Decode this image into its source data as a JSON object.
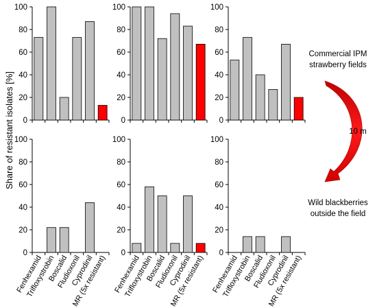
{
  "figure": {
    "ylabel": "Share of resistant isolates [%]",
    "annotation_top": [
      "Commercial IPM",
      "strawberry fields"
    ],
    "annotation_bottom": [
      "Wild blackberries",
      "outside the field"
    ],
    "distance_label": "10 m",
    "colors": {
      "bar": "#c0c0c0",
      "highlight": "#ff0000",
      "stroke": "#000000"
    }
  },
  "chart_data": [
    {
      "type": "bar",
      "panel": "top-left",
      "categories": [
        "Fenhexamid",
        "Trifloxystrobin",
        "Boscalid",
        "Fludioxonil",
        "Cyprodinil",
        "MR (5x resistant)"
      ],
      "values": [
        73,
        100,
        20,
        73,
        87,
        13
      ],
      "highlight": [
        5
      ],
      "ylim": [
        0,
        100
      ],
      "yticks": [
        0,
        20,
        40,
        60,
        80,
        100
      ],
      "show_categories": false
    },
    {
      "type": "bar",
      "panel": "top-center",
      "categories": [
        "Fenhexamid",
        "Trifloxystrobin",
        "Boscalid",
        "Fludioxonil",
        "Cyprodinil",
        "MR (5x resistant)"
      ],
      "values": [
        100,
        100,
        72,
        94,
        83,
        67
      ],
      "highlight": [
        5
      ],
      "ylim": [
        0,
        100
      ],
      "yticks": [
        0,
        20,
        40,
        60,
        80,
        100
      ],
      "show_categories": false
    },
    {
      "type": "bar",
      "panel": "top-right",
      "categories": [
        "Fenhexamid",
        "Trifloxystrobin",
        "Boscalid",
        "Fludioxonil",
        "Cyprodinil",
        "MR (5x resistant)"
      ],
      "values": [
        53,
        73,
        40,
        27,
        67,
        20
      ],
      "highlight": [
        5
      ],
      "ylim": [
        0,
        100
      ],
      "yticks": [
        0,
        20,
        40,
        60,
        80,
        100
      ],
      "show_categories": false
    },
    {
      "type": "bar",
      "panel": "bottom-left",
      "categories": [
        "Fenhexamid",
        "Trifloxystrobin",
        "Boscalid",
        "Fludioxonil",
        "Cyprodinil",
        "MR (5x resistant)"
      ],
      "values": [
        0,
        22,
        22,
        0,
        44,
        0
      ],
      "highlight": [
        5
      ],
      "ylim": [
        0,
        100
      ],
      "yticks": [
        0,
        20,
        40,
        60,
        80,
        100
      ],
      "show_categories": true
    },
    {
      "type": "bar",
      "panel": "bottom-center",
      "categories": [
        "Fenhexamid",
        "Trifloxystrobin",
        "Boscalid",
        "Fludioxonil",
        "Cyprodinil",
        "MR (5x resistant)"
      ],
      "values": [
        8,
        58,
        50,
        8,
        50,
        8
      ],
      "highlight": [
        5
      ],
      "ylim": [
        0,
        100
      ],
      "yticks": [
        0,
        20,
        40,
        60,
        80,
        100
      ],
      "show_categories": true
    },
    {
      "type": "bar",
      "panel": "bottom-right",
      "categories": [
        "Fenhexamid",
        "Trifloxystrobin",
        "Boscalid",
        "Fludioxonil",
        "Cyprodinil",
        "MR (5x resistant)"
      ],
      "values": [
        0,
        14,
        14,
        0,
        14,
        0
      ],
      "highlight": [
        5
      ],
      "ylim": [
        0,
        100
      ],
      "yticks": [
        0,
        20,
        40,
        60,
        80,
        100
      ],
      "show_categories": true
    }
  ]
}
